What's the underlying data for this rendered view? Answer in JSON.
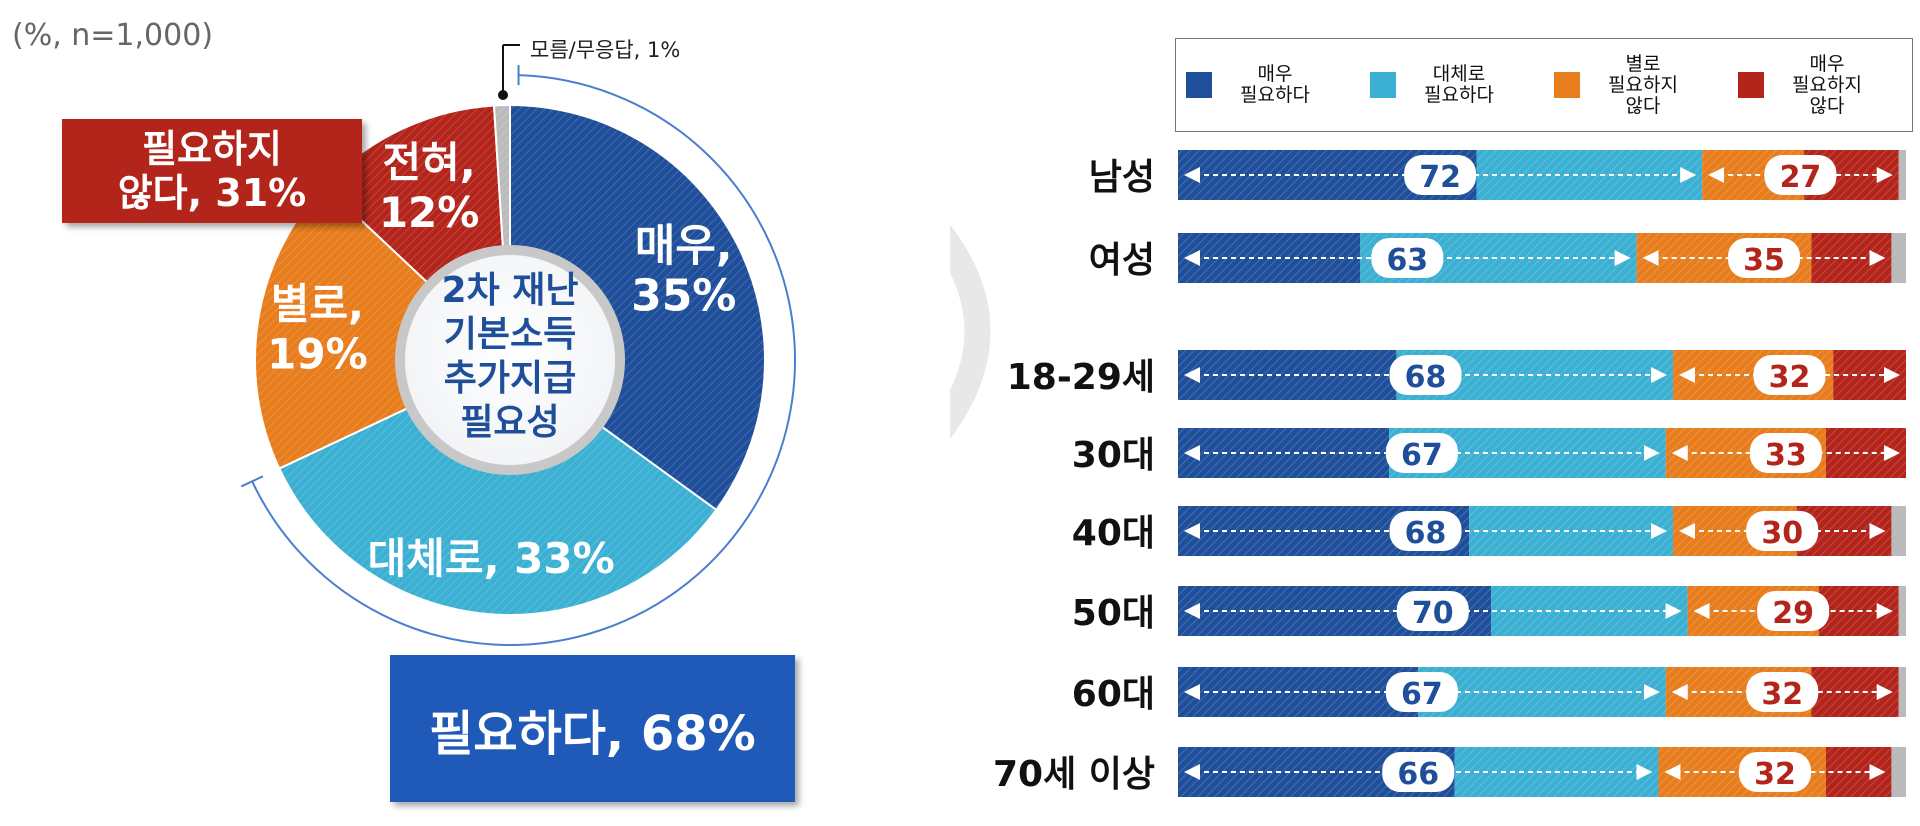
{
  "note": "(%, n=1,000)",
  "donut": {
    "center_label": [
      "2차 재난",
      "기본소득",
      "추가지급",
      "필요성"
    ],
    "small_label": "모름/무응답, 1%",
    "slice_labels": [
      [
        "매우,",
        "35%"
      ],
      [
        "대체로, 33%"
      ],
      [
        "별로,",
        "19%"
      ],
      [
        "전혀,",
        "12%"
      ]
    ],
    "callout_not_needed": "필요하지\n않다, 31%",
    "callout_needed": "필요하다, 68%"
  },
  "legend": [
    {
      "label": "매우\n필요하다",
      "color": "#1f4f9a"
    },
    {
      "label": "대체로\n필요하다",
      "color": "#3bb0d3"
    },
    {
      "label": "별로\n필요하지\n않다",
      "color": "#e87d1e"
    },
    {
      "label": "매우\n필요하지\n않다",
      "color": "#b3241b"
    }
  ],
  "chart_data": [
    {
      "type": "pie",
      "categories": [
        "매우",
        "대체로",
        "별로",
        "전혀",
        "모름/무응답"
      ],
      "values": [
        35,
        33,
        19,
        12,
        1
      ],
      "colors": [
        "#1f4f9a",
        "#3bb0d3",
        "#e87d1e",
        "#b3241b",
        "#bbbbbb"
      ],
      "groups": [
        {
          "label": "필요하다",
          "value": 68
        },
        {
          "label": "필요하지 않다",
          "value": 31
        }
      ],
      "unit": "%"
    },
    {
      "type": "bar",
      "stacked": true,
      "orientation": "horizontal",
      "categories": [
        "남성",
        "여성",
        "18-29세",
        "30대",
        "40대",
        "50대",
        "60대",
        "70세 이상"
      ],
      "series": [
        {
          "name": "매우 필요하다",
          "values": [
            41,
            25,
            30,
            29,
            40,
            43,
            33,
            38
          ]
        },
        {
          "name": "대체로 필요하다",
          "values": [
            31,
            38,
            38,
            38,
            28,
            27,
            34,
            28
          ]
        },
        {
          "name": "별로 필요하지 않다",
          "values": [
            14,
            24,
            22,
            22,
            17,
            18,
            20,
            23
          ]
        },
        {
          "name": "매우 필요하지 않다",
          "values": [
            13,
            11,
            10,
            11,
            13,
            11,
            12,
            9
          ]
        }
      ],
      "need_totals": [
        72,
        63,
        68,
        67,
        68,
        70,
        67,
        66
      ],
      "not_need_totals": [
        27,
        35,
        32,
        33,
        30,
        29,
        32,
        32
      ],
      "xlim": [
        0,
        100
      ]
    }
  ]
}
